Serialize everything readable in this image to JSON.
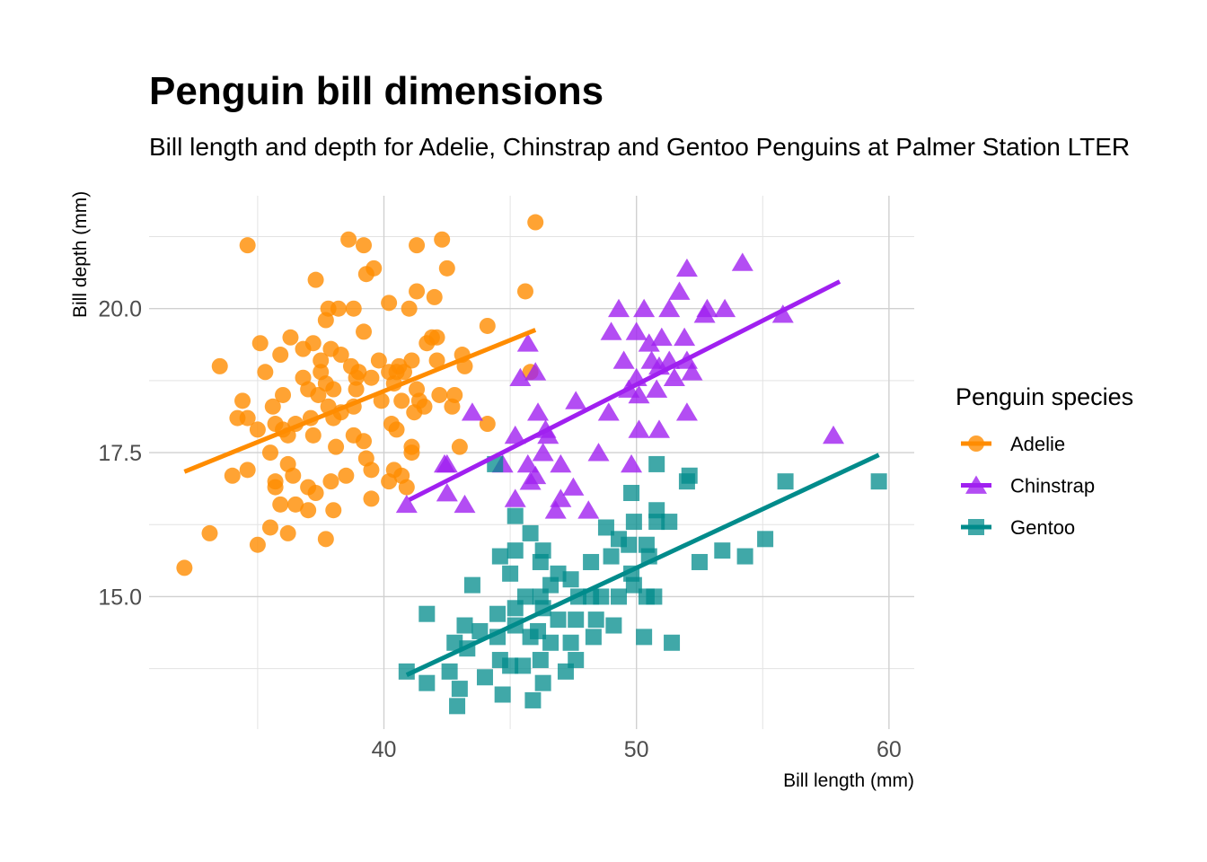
{
  "chart_data": {
    "type": "scatter",
    "title": "Penguin bill dimensions",
    "subtitle": "Bill length and depth for Adelie, Chinstrap and Gentoo Penguins at Palmer Station LTER",
    "xlabel": "Bill length (mm)",
    "ylabel": "Bill depth (mm)",
    "xlim": [
      30.7,
      61.0
    ],
    "ylim": [
      12.7,
      21.96
    ],
    "xticks": [
      40,
      50,
      60
    ],
    "xtick_labels": [
      "40",
      "50",
      "60"
    ],
    "yticks": [
      15,
      17.5,
      20
    ],
    "ytick_labels": [
      "15.0",
      "17.5",
      "20.0"
    ],
    "grid": true,
    "legend": {
      "title": "Penguin species",
      "position": "right"
    },
    "series": [
      {
        "name": "Adelie",
        "color": "#FF8C00",
        "marker": "circle",
        "fit": [
          [
            32.1,
            17.17
          ],
          [
            46.0,
            19.63
          ]
        ],
        "points": [
          [
            34.6,
            21.1
          ],
          [
            38.6,
            21.2
          ],
          [
            39.2,
            21.1
          ],
          [
            41.3,
            21.1
          ],
          [
            42.3,
            21.2
          ],
          [
            46.0,
            21.5
          ],
          [
            42.5,
            20.7
          ],
          [
            39.6,
            20.7
          ],
          [
            39.3,
            20.6
          ],
          [
            37.3,
            20.5
          ],
          [
            45.6,
            20.3
          ],
          [
            41.3,
            20.3
          ],
          [
            42.0,
            20.2
          ],
          [
            40.2,
            20.1
          ],
          [
            41.0,
            20.0
          ],
          [
            37.8,
            20.0
          ],
          [
            38.2,
            20.0
          ],
          [
            38.8,
            20.0
          ],
          [
            37.7,
            19.8
          ],
          [
            44.1,
            19.7
          ],
          [
            39.2,
            19.6
          ],
          [
            41.9,
            19.5
          ],
          [
            42.1,
            19.5
          ],
          [
            35.1,
            19.4
          ],
          [
            36.3,
            19.5
          ],
          [
            37.2,
            19.4
          ],
          [
            41.7,
            19.4
          ],
          [
            43.1,
            19.2
          ],
          [
            36.8,
            19.3
          ],
          [
            37.9,
            19.3
          ],
          [
            38.3,
            19.2
          ],
          [
            35.9,
            19.2
          ],
          [
            42.1,
            19.1
          ],
          [
            41.1,
            19.1
          ],
          [
            39.8,
            19.1
          ],
          [
            43.2,
            19.0
          ],
          [
            33.5,
            19.0
          ],
          [
            37.5,
            19.1
          ],
          [
            38.7,
            19.0
          ],
          [
            40.6,
            19.0
          ],
          [
            35.3,
            18.9
          ],
          [
            37.5,
            18.9
          ],
          [
            39.0,
            18.9
          ],
          [
            40.2,
            18.9
          ],
          [
            40.5,
            18.9
          ],
          [
            40.8,
            18.9
          ],
          [
            36.8,
            18.8
          ],
          [
            38.9,
            18.8
          ],
          [
            39.5,
            18.8
          ],
          [
            40.4,
            18.7
          ],
          [
            37.7,
            18.7
          ],
          [
            38.9,
            18.6
          ],
          [
            41.3,
            18.6
          ],
          [
            37.0,
            18.6
          ],
          [
            38.0,
            18.6
          ],
          [
            36.0,
            18.5
          ],
          [
            42.2,
            18.5
          ],
          [
            42.8,
            18.5
          ],
          [
            37.4,
            18.5
          ],
          [
            39.9,
            18.4
          ],
          [
            34.4,
            18.4
          ],
          [
            40.7,
            18.4
          ],
          [
            41.4,
            18.4
          ],
          [
            38.8,
            18.3
          ],
          [
            37.8,
            18.3
          ],
          [
            42.7,
            18.3
          ],
          [
            35.6,
            18.3
          ],
          [
            38.3,
            18.2
          ],
          [
            41.2,
            18.2
          ],
          [
            34.2,
            18.1
          ],
          [
            34.6,
            18.1
          ],
          [
            37.1,
            18.1
          ],
          [
            38.0,
            18.1
          ],
          [
            44.1,
            18.0
          ],
          [
            35.7,
            18.0
          ],
          [
            36.5,
            18.0
          ],
          [
            40.3,
            18.0
          ],
          [
            41.6,
            18.3
          ],
          [
            35.0,
            17.9
          ],
          [
            36.0,
            17.9
          ],
          [
            40.5,
            17.9
          ],
          [
            38.8,
            17.8
          ],
          [
            37.2,
            17.8
          ],
          [
            36.2,
            17.8
          ],
          [
            39.2,
            17.7
          ],
          [
            38.1,
            17.6
          ],
          [
            41.1,
            17.6
          ],
          [
            43.0,
            17.6
          ],
          [
            35.5,
            17.5
          ],
          [
            41.1,
            17.5
          ],
          [
            39.3,
            17.4
          ],
          [
            36.2,
            17.3
          ],
          [
            39.5,
            17.2
          ],
          [
            34.0,
            17.1
          ],
          [
            34.6,
            17.2
          ],
          [
            36.4,
            17.1
          ],
          [
            40.4,
            17.2
          ],
          [
            35.7,
            17.0
          ],
          [
            40.2,
            17.0
          ],
          [
            37.9,
            17.0
          ],
          [
            38.5,
            17.1
          ],
          [
            40.7,
            17.1
          ],
          [
            40.9,
            16.9
          ],
          [
            37.0,
            16.9
          ],
          [
            35.7,
            16.9
          ],
          [
            37.3,
            16.8
          ],
          [
            39.5,
            16.7
          ],
          [
            35.9,
            16.6
          ],
          [
            36.5,
            16.6
          ],
          [
            37.0,
            16.5
          ],
          [
            38.0,
            16.5
          ],
          [
            35.5,
            16.2
          ],
          [
            36.2,
            16.1
          ],
          [
            33.1,
            16.1
          ],
          [
            35.0,
            15.9
          ],
          [
            37.7,
            16.0
          ],
          [
            32.1,
            15.5
          ],
          [
            45.8,
            18.9
          ]
        ]
      },
      {
        "name": "Chinstrap",
        "color": "#A020F0",
        "marker": "triangle",
        "fit": [
          [
            41.0,
            16.68
          ],
          [
            58.05,
            20.47
          ]
        ],
        "points": [
          [
            54.2,
            20.8
          ],
          [
            52.0,
            20.7
          ],
          [
            51.7,
            20.3
          ],
          [
            49.3,
            20.0
          ],
          [
            50.3,
            20.0
          ],
          [
            51.3,
            20.0
          ],
          [
            52.8,
            20.0
          ],
          [
            53.5,
            20.0
          ],
          [
            55.8,
            19.9
          ],
          [
            52.7,
            19.9
          ],
          [
            49.0,
            19.6
          ],
          [
            50.0,
            19.6
          ],
          [
            51.9,
            19.5
          ],
          [
            45.7,
            19.4
          ],
          [
            51.0,
            19.5
          ],
          [
            50.5,
            19.4
          ],
          [
            50.6,
            19.1
          ],
          [
            49.5,
            19.1
          ],
          [
            51.3,
            19.1
          ],
          [
            50.9,
            19.0
          ],
          [
            52.0,
            19.1
          ],
          [
            52.2,
            18.9
          ],
          [
            46.0,
            18.9
          ],
          [
            45.4,
            18.8
          ],
          [
            50.0,
            18.8
          ],
          [
            51.5,
            18.8
          ],
          [
            50.8,
            18.6
          ],
          [
            49.7,
            18.6
          ],
          [
            50.1,
            18.5
          ],
          [
            47.6,
            18.4
          ],
          [
            43.5,
            18.2
          ],
          [
            46.1,
            18.2
          ],
          [
            48.9,
            18.2
          ],
          [
            52.0,
            18.2
          ],
          [
            50.1,
            17.9
          ],
          [
            50.9,
            17.9
          ],
          [
            46.4,
            17.9
          ],
          [
            46.5,
            17.8
          ],
          [
            45.2,
            17.8
          ],
          [
            57.8,
            17.8
          ],
          [
            48.5,
            17.5
          ],
          [
            46.3,
            17.5
          ],
          [
            44.7,
            17.3
          ],
          [
            45.7,
            17.3
          ],
          [
            47.0,
            17.3
          ],
          [
            49.8,
            17.3
          ],
          [
            42.4,
            17.3
          ],
          [
            42.5,
            17.3
          ],
          [
            45.8,
            17.0
          ],
          [
            46.0,
            17.1
          ],
          [
            47.5,
            16.9
          ],
          [
            42.5,
            16.8
          ],
          [
            45.2,
            16.7
          ],
          [
            47.0,
            16.7
          ],
          [
            43.2,
            16.6
          ],
          [
            40.9,
            16.6
          ],
          [
            48.1,
            16.5
          ],
          [
            46.8,
            16.5
          ]
        ]
      },
      {
        "name": "Gentoo",
        "color": "#008B8B",
        "marker": "square",
        "fit": [
          [
            40.9,
            13.64
          ],
          [
            59.6,
            17.46
          ]
        ],
        "points": [
          [
            59.6,
            17.0
          ],
          [
            55.9,
            17.0
          ],
          [
            52.1,
            17.1
          ],
          [
            52.0,
            17.0
          ],
          [
            50.8,
            17.3
          ],
          [
            44.4,
            17.3
          ],
          [
            49.8,
            16.8
          ],
          [
            50.8,
            16.5
          ],
          [
            50.8,
            16.3
          ],
          [
            51.3,
            16.3
          ],
          [
            45.2,
            16.4
          ],
          [
            45.8,
            16.1
          ],
          [
            48.8,
            16.2
          ],
          [
            49.9,
            16.3
          ],
          [
            55.1,
            16.0
          ],
          [
            53.4,
            15.8
          ],
          [
            54.3,
            15.7
          ],
          [
            52.5,
            15.6
          ],
          [
            45.2,
            15.8
          ],
          [
            46.3,
            15.8
          ],
          [
            44.6,
            15.7
          ],
          [
            46.2,
            15.6
          ],
          [
            48.2,
            15.6
          ],
          [
            49.3,
            16.0
          ],
          [
            49.7,
            15.9
          ],
          [
            50.4,
            15.9
          ],
          [
            50.5,
            15.7
          ],
          [
            49.0,
            15.7
          ],
          [
            45.0,
            15.4
          ],
          [
            46.9,
            15.4
          ],
          [
            47.4,
            15.3
          ],
          [
            43.5,
            15.2
          ],
          [
            46.6,
            15.2
          ],
          [
            47.7,
            15.0
          ],
          [
            48.2,
            15.0
          ],
          [
            48.6,
            15.0
          ],
          [
            49.3,
            15.0
          ],
          [
            49.9,
            15.2
          ],
          [
            50.4,
            15.0
          ],
          [
            50.7,
            15.0
          ],
          [
            41.7,
            14.7
          ],
          [
            46.2,
            15.0
          ],
          [
            45.6,
            15.0
          ],
          [
            44.5,
            14.7
          ],
          [
            45.2,
            14.8
          ],
          [
            46.3,
            14.8
          ],
          [
            46.9,
            14.6
          ],
          [
            47.6,
            14.6
          ],
          [
            48.4,
            14.6
          ],
          [
            49.1,
            14.5
          ],
          [
            48.3,
            14.3
          ],
          [
            43.2,
            14.5
          ],
          [
            43.8,
            14.4
          ],
          [
            44.5,
            14.3
          ],
          [
            45.2,
            14.5
          ],
          [
            45.8,
            14.3
          ],
          [
            46.6,
            14.2
          ],
          [
            47.4,
            14.2
          ],
          [
            42.8,
            14.2
          ],
          [
            43.3,
            14.1
          ],
          [
            44.6,
            13.9
          ],
          [
            45.0,
            13.8
          ],
          [
            45.5,
            13.8
          ],
          [
            46.2,
            13.9
          ],
          [
            47.2,
            13.7
          ],
          [
            47.6,
            13.9
          ],
          [
            40.9,
            13.7
          ],
          [
            42.6,
            13.7
          ],
          [
            44.0,
            13.6
          ],
          [
            41.7,
            13.5
          ],
          [
            43.0,
            13.4
          ],
          [
            44.7,
            13.3
          ],
          [
            46.3,
            13.5
          ],
          [
            42.9,
            13.1
          ],
          [
            45.9,
            13.2
          ],
          [
            50.3,
            14.3
          ],
          [
            51.4,
            14.2
          ],
          [
            49.8,
            15.4
          ],
          [
            46.1,
            14.4
          ]
        ]
      }
    ]
  }
}
